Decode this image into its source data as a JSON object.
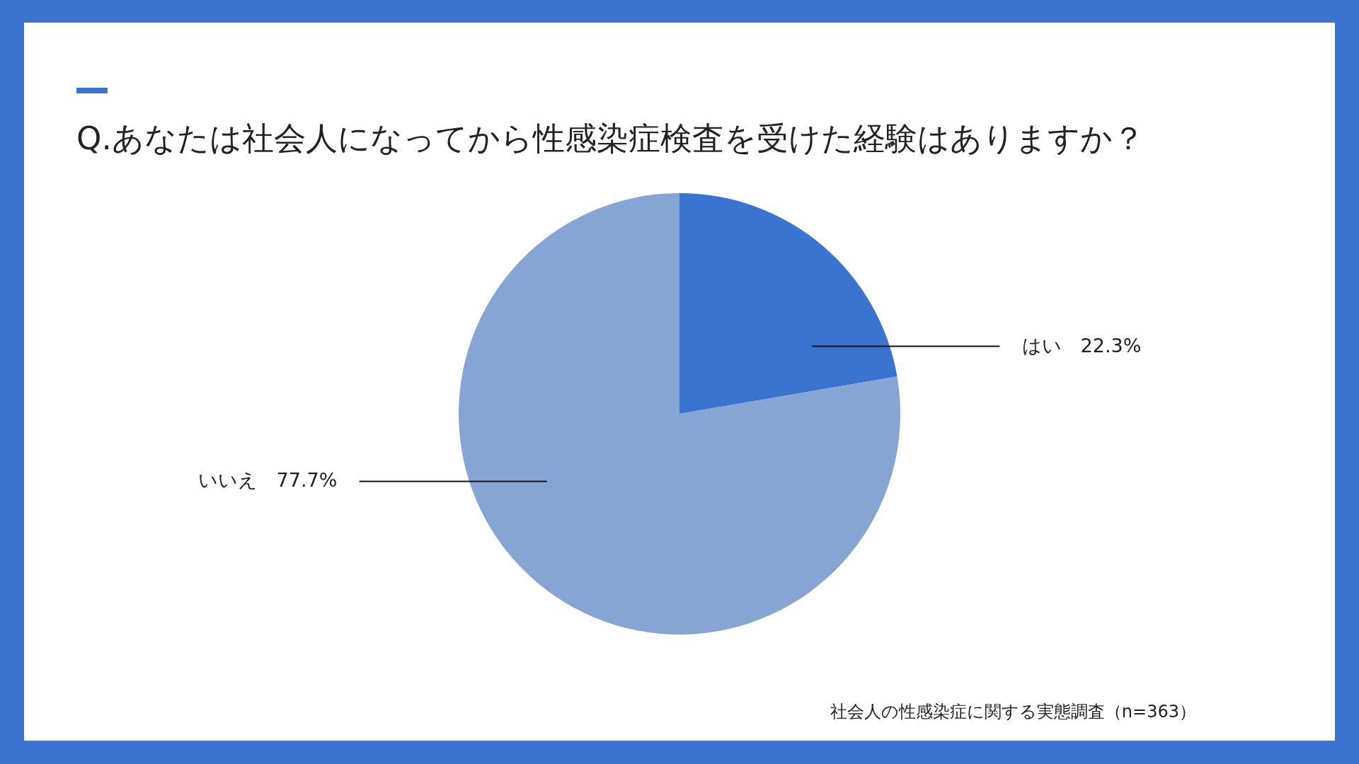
{
  "chart_data": {
    "type": "pie",
    "title": "Q.あなたは社会人になってから性感染症検査を受けた経験はありますか？",
    "categories": [
      "はい",
      "いいえ"
    ],
    "values": [
      22.3,
      77.7
    ],
    "value_labels": [
      "22.3%",
      "77.7%"
    ],
    "colors": [
      "#3b73d1",
      "#86a5d4"
    ],
    "annotations": [
      "社会人の性感染症に関する実態調査（n=363）"
    ]
  }
}
